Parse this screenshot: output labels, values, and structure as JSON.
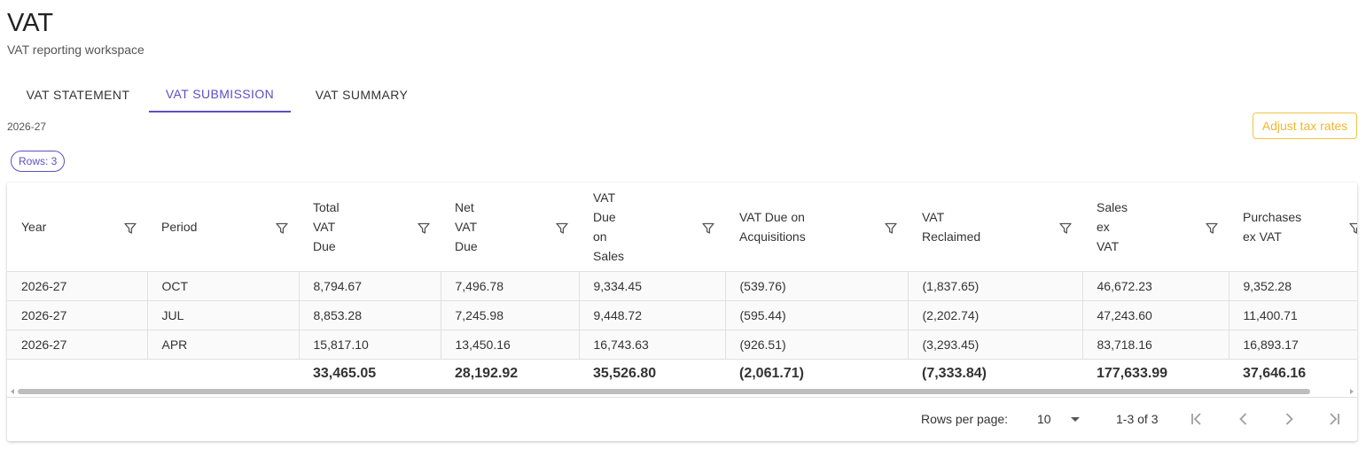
{
  "page": {
    "title": "VAT",
    "subtitle": "VAT reporting workspace"
  },
  "tabs": [
    {
      "label": "VAT STATEMENT",
      "active": false
    },
    {
      "label": "VAT SUBMISSION",
      "active": true
    },
    {
      "label": "VAT SUMMARY",
      "active": false
    }
  ],
  "tax_year": "2026-27",
  "adjust_button": "Adjust tax rates",
  "rows_chip": "Rows: 3",
  "table": {
    "columns": [
      {
        "label": "Year"
      },
      {
        "label": "Period"
      },
      {
        "label": "Total VAT Due"
      },
      {
        "label": "Net VAT Due"
      },
      {
        "label": "VAT Due on Sales"
      },
      {
        "label": "VAT Due on Acquisitions"
      },
      {
        "label": "VAT Reclaimed"
      },
      {
        "label": "Sales ex VAT"
      },
      {
        "label": "Purchases ex VAT"
      }
    ],
    "rows": [
      {
        "cells": [
          "2026-27",
          "OCT",
          "8,794.67",
          "7,496.78",
          "9,334.45",
          "(539.76)",
          "(1,837.65)",
          "46,672.23",
          "9,352.28"
        ]
      },
      {
        "cells": [
          "2026-27",
          "JUL",
          "8,853.28",
          "7,245.98",
          "9,448.72",
          "(595.44)",
          "(2,202.74)",
          "47,243.60",
          "11,400.71"
        ]
      },
      {
        "cells": [
          "2026-27",
          "APR",
          "15,817.10",
          "13,450.16",
          "16,743.63",
          "(926.51)",
          "(3,293.45)",
          "83,718.16",
          "16,893.17"
        ]
      }
    ],
    "totals": [
      "",
      "",
      "33,465.05",
      "28,192.92",
      "35,526.80",
      "(2,061.71)",
      "(7,333.84)",
      "177,633.99",
      "37,646.16"
    ]
  },
  "pagination": {
    "rows_per_page_label": "Rows per page:",
    "rows_per_page_value": "10",
    "range_text": "1-3 of 3",
    "icons": [
      "first-page-icon",
      "previous-page-icon",
      "next-page-icon",
      "last-page-icon"
    ]
  },
  "colors": {
    "accent": "#5c4fc4",
    "warning": "#f2b630"
  }
}
